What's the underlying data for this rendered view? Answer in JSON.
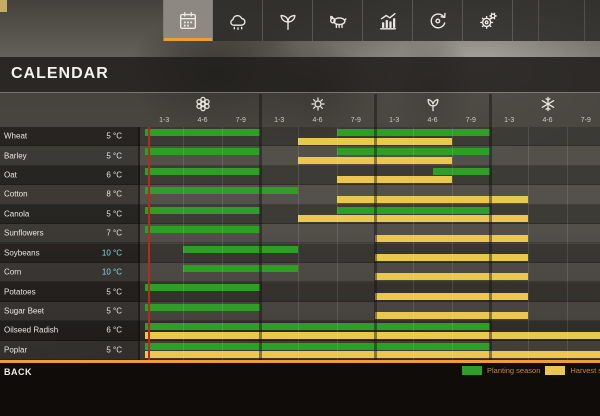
{
  "topbar": {
    "tabs": [
      {
        "id": "calendar",
        "icon": "calendar-icon",
        "selected": true
      },
      {
        "id": "weather",
        "icon": "weather-icon",
        "selected": false
      },
      {
        "id": "crop-info",
        "icon": "seedling-icon",
        "selected": false
      },
      {
        "id": "animals",
        "icon": "cow-icon",
        "selected": false
      },
      {
        "id": "statistics",
        "icon": "bar-chart-icon",
        "selected": false
      },
      {
        "id": "rotation",
        "icon": "cycle-icon",
        "selected": false
      },
      {
        "id": "settings",
        "icon": "gears-icon",
        "selected": false
      }
    ]
  },
  "header": {
    "title": "CALENDAR"
  },
  "legend": {
    "planting_label": "Planting season",
    "harvest_label": "Harvest season"
  },
  "bottom_bar": {
    "back_label": "BACK"
  },
  "colors": {
    "planting_green": "#2f9e27",
    "harvest_yellow": "#e9c84d",
    "current_day_red": "#b52a1b",
    "cold_temp_cyan": "#8fd9ea",
    "accent_orange": "#ef9f2f",
    "temp_text": "#e8e5e0"
  },
  "chart_data": {
    "type": "gantt-calendar",
    "title": "Crop planting and harvest calendar",
    "days_per_season": 9,
    "x_axis": {
      "seasons": [
        {
          "id": "spring",
          "icon": "flower-icon",
          "tick_labels": [
            "1-3",
            "4-6",
            "7-9"
          ]
        },
        {
          "id": "summer",
          "icon": "sun-icon",
          "tick_labels": [
            "1-3",
            "4-6",
            "7-9"
          ]
        },
        {
          "id": "autumn",
          "icon": "bud-icon",
          "tick_labels": [
            "1-3",
            "4-6",
            "7-9"
          ]
        },
        {
          "id": "winter",
          "icon": "snowflake-icon",
          "tick_labels": [
            "1-3",
            "4-6",
            "7-9"
          ]
        }
      ]
    },
    "current_day": 0.28,
    "crops": [
      {
        "name": "Wheat",
        "temp": "5 °C",
        "cold": false,
        "plant": [
          [
            0,
            9
          ],
          [
            15,
            27
          ]
        ],
        "harvest": [
          [
            12,
            24
          ]
        ]
      },
      {
        "name": "Barley",
        "temp": "5 °C",
        "cold": false,
        "plant": [
          [
            0,
            9
          ],
          [
            15,
            27
          ]
        ],
        "harvest": [
          [
            12,
            24
          ]
        ]
      },
      {
        "name": "Oat",
        "temp": "6 °C",
        "cold": false,
        "plant": [
          [
            0,
            9
          ],
          [
            22.5,
            27
          ]
        ],
        "harvest": [
          [
            15,
            24
          ]
        ]
      },
      {
        "name": "Cotton",
        "temp": "8 °C",
        "cold": false,
        "plant": [
          [
            0,
            12
          ]
        ],
        "harvest": [
          [
            15,
            30
          ]
        ]
      },
      {
        "name": "Canola",
        "temp": "5 °C",
        "cold": false,
        "plant": [
          [
            0,
            9
          ],
          [
            15,
            27
          ]
        ],
        "harvest": [
          [
            12,
            30
          ]
        ]
      },
      {
        "name": "Sunflowers",
        "temp": "7 °C",
        "cold": false,
        "plant": [
          [
            0,
            9
          ]
        ],
        "harvest": [
          [
            18,
            30
          ]
        ]
      },
      {
        "name": "Soybeans",
        "temp": "10 °C",
        "cold": true,
        "plant": [
          [
            3,
            12
          ]
        ],
        "harvest": [
          [
            18,
            30
          ]
        ]
      },
      {
        "name": "Corn",
        "temp": "10 °C",
        "cold": true,
        "plant": [
          [
            3,
            12
          ]
        ],
        "harvest": [
          [
            18,
            30
          ]
        ]
      },
      {
        "name": "Potatoes",
        "temp": "5 °C",
        "cold": false,
        "plant": [
          [
            0,
            9
          ]
        ],
        "harvest": [
          [
            18,
            30
          ]
        ]
      },
      {
        "name": "Sugar Beet",
        "temp": "5 °C",
        "cold": false,
        "plant": [
          [
            0,
            9
          ]
        ],
        "harvest": [
          [
            18,
            30
          ]
        ]
      },
      {
        "name": "Oilseed Radish",
        "temp": "6 °C",
        "cold": false,
        "plant": [
          [
            0,
            27
          ]
        ],
        "harvest": [
          [
            0,
            36
          ]
        ]
      },
      {
        "name": "Poplar",
        "temp": "5 °C",
        "cold": false,
        "plant": [
          [
            0,
            27
          ]
        ],
        "harvest": [
          [
            0,
            36
          ]
        ]
      }
    ]
  }
}
